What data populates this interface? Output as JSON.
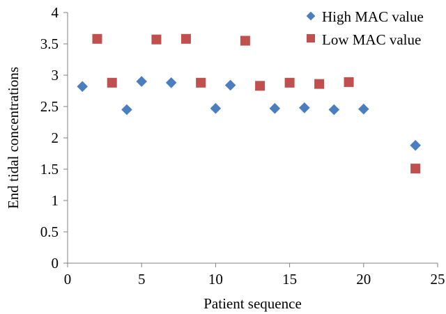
{
  "chart_data": {
    "type": "scatter",
    "title": "",
    "xlabel": "Patient sequence",
    "ylabel": "End tidal concentrations",
    "xlim": [
      0,
      25
    ],
    "ylim": [
      0,
      4
    ],
    "x_ticks": [
      0,
      5,
      10,
      15,
      20,
      25
    ],
    "y_ticks": [
      0,
      0.5,
      1,
      1.5,
      2,
      2.5,
      3,
      3.5,
      4
    ],
    "x_tick_labels": [
      "0",
      "5",
      "10",
      "15",
      "20",
      "25"
    ],
    "y_tick_labels": [
      "0",
      "0.5",
      "1",
      "1.5",
      "2",
      "2.5",
      "3",
      "3.5",
      "4"
    ],
    "grid": false,
    "legend_position": "top-right",
    "series": [
      {
        "name": "High MAC value",
        "marker": "diamond",
        "color": "#4a7ebf",
        "points": [
          {
            "x": 1,
            "y": 2.82
          },
          {
            "x": 4,
            "y": 2.45
          },
          {
            "x": 5,
            "y": 2.9
          },
          {
            "x": 7,
            "y": 2.88
          },
          {
            "x": 10,
            "y": 2.47
          },
          {
            "x": 11,
            "y": 2.84
          },
          {
            "x": 14,
            "y": 2.47
          },
          {
            "x": 16,
            "y": 2.48
          },
          {
            "x": 18,
            "y": 2.45
          },
          {
            "x": 20,
            "y": 2.46
          },
          {
            "x": 23.5,
            "y": 1.88
          }
        ]
      },
      {
        "name": "Low  MAC value",
        "marker": "square",
        "color": "#c0504d",
        "points": [
          {
            "x": 2,
            "y": 3.58
          },
          {
            "x": 3,
            "y": 2.88
          },
          {
            "x": 6,
            "y": 3.57
          },
          {
            "x": 8,
            "y": 3.58
          },
          {
            "x": 9,
            "y": 2.88
          },
          {
            "x": 12,
            "y": 3.55
          },
          {
            "x": 13,
            "y": 2.83
          },
          {
            "x": 15,
            "y": 2.88
          },
          {
            "x": 17,
            "y": 2.86
          },
          {
            "x": 19,
            "y": 2.89
          },
          {
            "x": 23.5,
            "y": 1.51
          }
        ]
      }
    ]
  }
}
